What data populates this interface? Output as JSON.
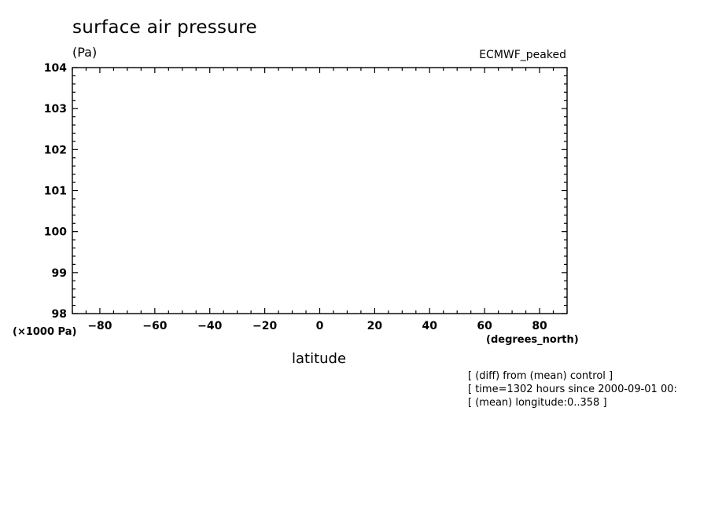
{
  "chart_data": {
    "type": "line",
    "title": "surface air pressure",
    "units_label": "(Pa)",
    "dataset_label": "ECMWF_peaked",
    "xlabel": "latitude",
    "x_unit_label": "(degrees_north)",
    "y_unit_label": "(×1000 Pa)",
    "xlim": [
      -90,
      90
    ],
    "ylim": [
      98,
      104
    ],
    "x_ticks": [
      -80,
      -60,
      -40,
      -20,
      0,
      20,
      40,
      60,
      80
    ],
    "y_ticks": [
      98,
      99,
      100,
      101,
      102,
      103,
      104
    ],
    "x_minor_step": 5,
    "y_minor_step": 0.2,
    "grid": false,
    "series": [],
    "notes": [
      "[ (diff) from (mean) control ]",
      "[ time=1302 hours since 2000-09-01 00:",
      "[ (mean) longitude:0..358 ]"
    ]
  }
}
